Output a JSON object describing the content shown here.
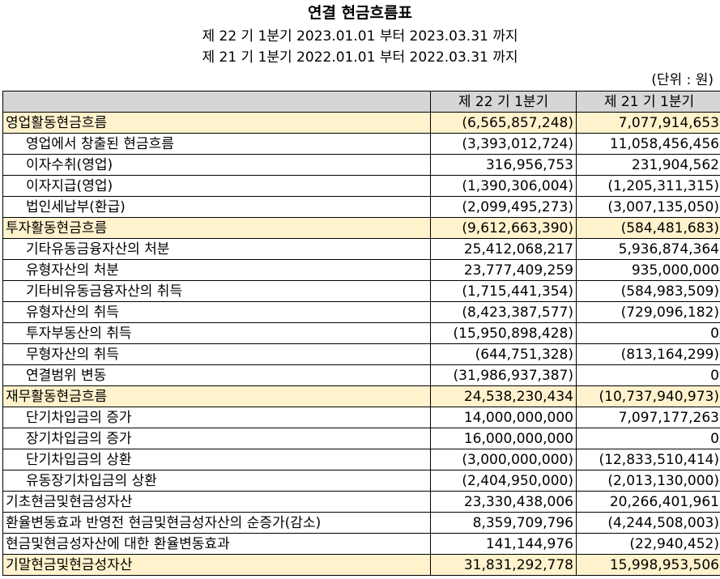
{
  "title": "연결 현금흐름표",
  "period_current": "제 22 기 1분기 2023.01.01 부터 2023.03.31 까지",
  "period_prior": "제 21 기 1분기 2022.01.01 부터 2022.03.31 까지",
  "unit": "(단위 : 원)",
  "columns": [
    "",
    "제 22 기 1분기",
    "제 21 기 1분기"
  ],
  "rows": [
    {
      "label": "영업활동현금흐름",
      "cur": "(6,565,857,248)",
      "prev": "7,077,914,653",
      "highlight": true,
      "indent": false
    },
    {
      "label": "영업에서 창출된 현금흐름",
      "cur": "(3,393,012,724)",
      "prev": "11,058,456,456",
      "highlight": false,
      "indent": true
    },
    {
      "label": "이자수취(영업)",
      "cur": "316,956,753",
      "prev": "231,904,562",
      "highlight": false,
      "indent": true
    },
    {
      "label": "이자지급(영업)",
      "cur": "(1,390,306,004)",
      "prev": "(1,205,311,315)",
      "highlight": false,
      "indent": true
    },
    {
      "label": "법인세납부(환급)",
      "cur": "(2,099,495,273)",
      "prev": "(3,007,135,050)",
      "highlight": false,
      "indent": true
    },
    {
      "label": "투자활동현금흐름",
      "cur": "(9,612,663,390)",
      "prev": "(584,481,683)",
      "highlight": true,
      "indent": false
    },
    {
      "label": "기타유동금융자산의 처분",
      "cur": "25,412,068,217",
      "prev": "5,936,874,364",
      "highlight": false,
      "indent": true
    },
    {
      "label": "유형자산의 처분",
      "cur": "23,777,409,259",
      "prev": "935,000,000",
      "highlight": false,
      "indent": true
    },
    {
      "label": "기타비유동금융자산의 취득",
      "cur": "(1,715,441,354)",
      "prev": "(584,983,509)",
      "highlight": false,
      "indent": true
    },
    {
      "label": "유형자산의 취득",
      "cur": "(8,423,387,577)",
      "prev": "(729,096,182)",
      "highlight": false,
      "indent": true
    },
    {
      "label": "투자부동산의 취득",
      "cur": "(15,950,898,428)",
      "prev": "0",
      "highlight": false,
      "indent": true
    },
    {
      "label": "무형자산의 취득",
      "cur": "(644,751,328)",
      "prev": "(813,164,299)",
      "highlight": false,
      "indent": true
    },
    {
      "label": "연결범위 변동",
      "cur": "(31,986,937,387)",
      "prev": "0",
      "highlight": false,
      "indent": true
    },
    {
      "label": "재무활동현금흐름",
      "cur": "24,538,230,434",
      "prev": "(10,737,940,973)",
      "highlight": true,
      "indent": false
    },
    {
      "label": "단기차입금의 증가",
      "cur": "14,000,000,000",
      "prev": "7,097,177,263",
      "highlight": false,
      "indent": true
    },
    {
      "label": "장기차입금의 증가",
      "cur": "16,000,000,000",
      "prev": "0",
      "highlight": false,
      "indent": true
    },
    {
      "label": "단기차입금의 상환",
      "cur": "(3,000,000,000)",
      "prev": "(12,833,510,414)",
      "highlight": false,
      "indent": true
    },
    {
      "label": "유동장기차입금의 상환",
      "cur": "(2,404,950,000)",
      "prev": "(2,013,130,000)",
      "highlight": false,
      "indent": true
    },
    {
      "label": "기초현금및현금성자산",
      "cur": "23,330,438,006",
      "prev": "20,266,401,961",
      "highlight": false,
      "indent": false
    },
    {
      "label": "환율변동효과 반영전 현금및현금성자산의 순증가(감소)",
      "cur": "8,359,709,796",
      "prev": "(4,244,508,003)",
      "highlight": false,
      "indent": false
    },
    {
      "label": "현금및현금성자산에 대한 환율변동효과",
      "cur": "141,144,976",
      "prev": "(22,940,452)",
      "highlight": false,
      "indent": false
    },
    {
      "label": "기말현금및현금성자산",
      "cur": "31,831,292,778",
      "prev": "15,998,953,506",
      "highlight": true,
      "indent": false
    }
  ]
}
